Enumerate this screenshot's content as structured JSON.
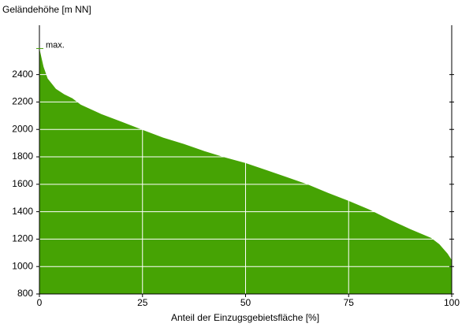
{
  "chart_data": {
    "type": "area",
    "y_label": "Geländehöhe [m NN]",
    "x_label": "Anteil der Einzugsgebietsfläche [%]",
    "annotation": "max.",
    "x": [
      0,
      1,
      2,
      4,
      6,
      8,
      10,
      15,
      20,
      25,
      30,
      35,
      40,
      45,
      50,
      55,
      60,
      65,
      70,
      75,
      80,
      85,
      90,
      95,
      97,
      98,
      99,
      100
    ],
    "series": [
      {
        "color": "#46a304",
        "values": [
          2590,
          2457,
          2371,
          2296,
          2256,
          2227,
          2181,
          2112,
          2055,
          1997,
          1940,
          1894,
          1842,
          1796,
          1755,
          1704,
          1652,
          1600,
          1537,
          1479,
          1416,
          1341,
          1272,
          1209,
          1163,
          1128,
          1094,
          1047
        ]
      }
    ],
    "xlim": [
      0,
      100
    ],
    "ylim": [
      800,
      2760
    ],
    "xticks": [
      0,
      25,
      50,
      75,
      100
    ],
    "yticks": [
      800,
      1000,
      1200,
      1400,
      1600,
      1800,
      2000,
      2200,
      2400
    ],
    "grid": true
  }
}
